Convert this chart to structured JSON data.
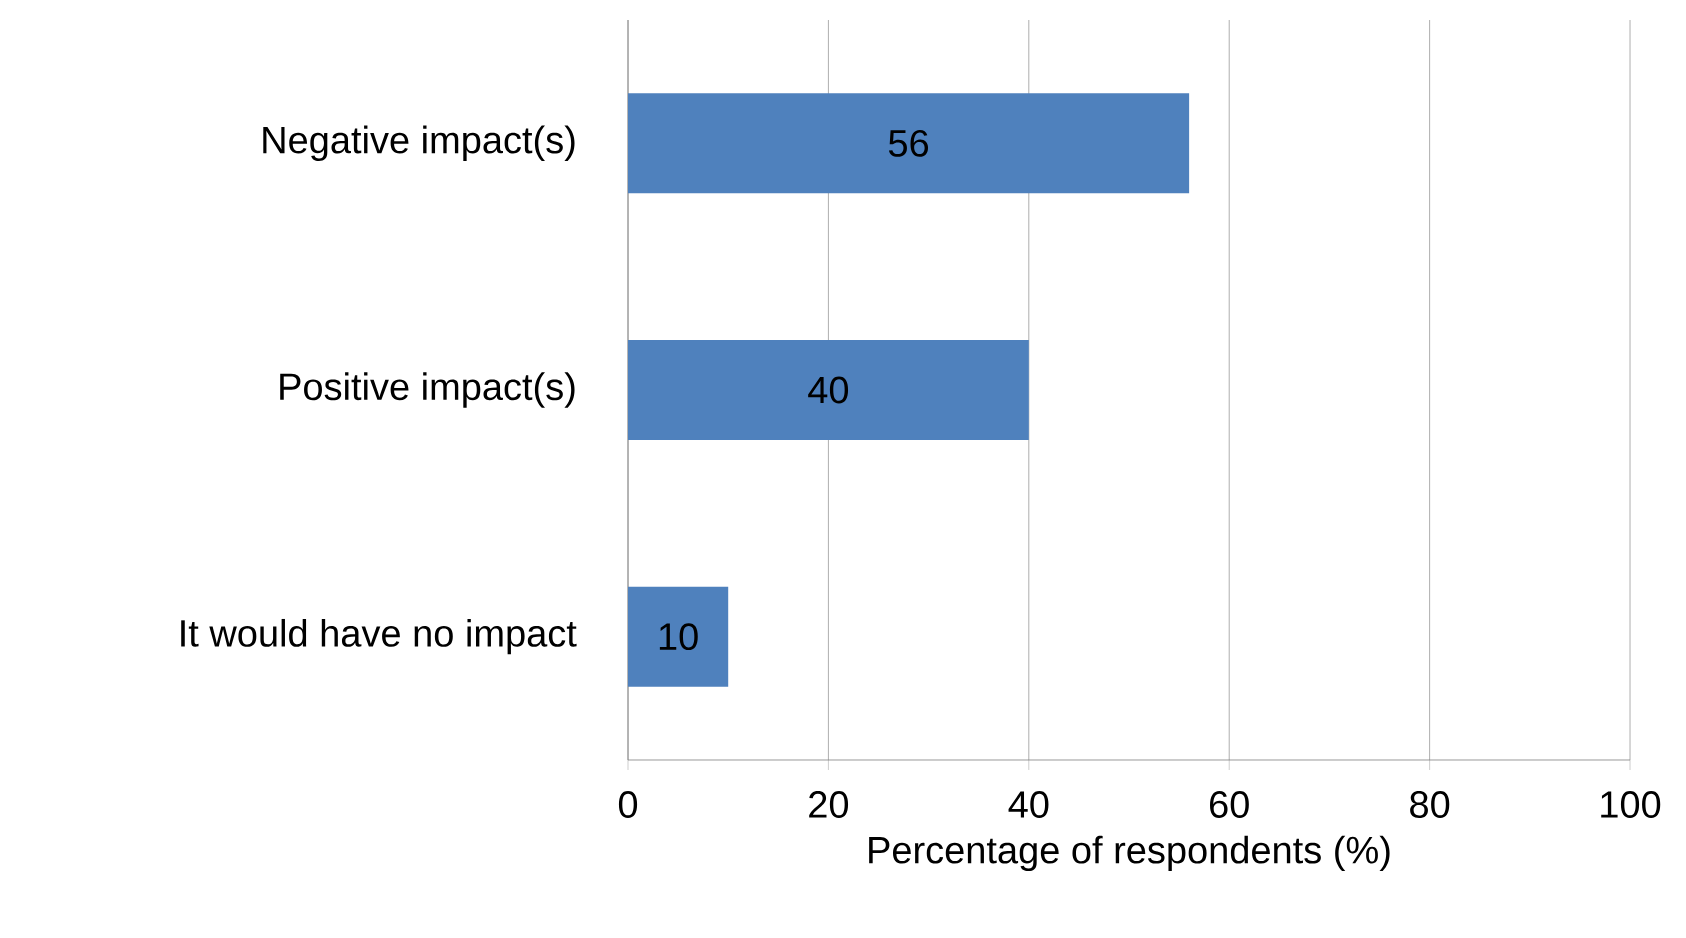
{
  "chart_data": {
    "type": "bar",
    "orientation": "horizontal",
    "xlabel": "Percentage of respondents (%)",
    "categories": [
      "Negative impact(s)",
      "Positive impact(s)",
      "It would have no impact"
    ],
    "values": [
      56,
      40,
      10
    ],
    "color": "#4f81bd",
    "data_labels": true,
    "xlim": [
      0,
      100
    ],
    "xticks": [
      0,
      20,
      40,
      60,
      80,
      100
    ],
    "grid": "x"
  }
}
